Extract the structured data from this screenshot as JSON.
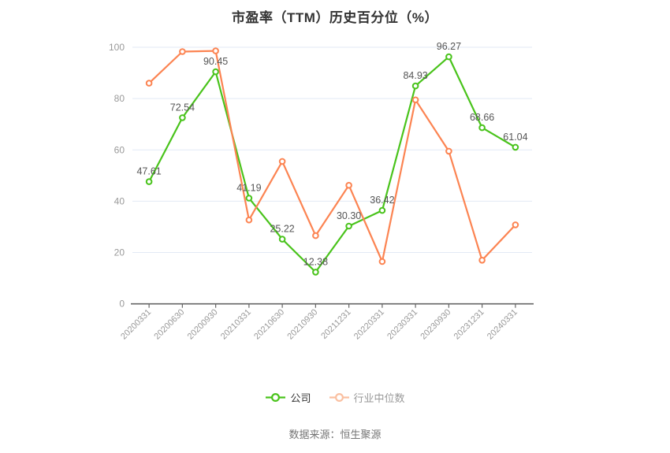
{
  "title": "市盈率（TTM）历史百分位（%）",
  "source_note": "数据来源：恒生聚源",
  "colors": {
    "company_line": "#49C31B",
    "industry_line": "#FC8452",
    "industry_legend_marker": "#FAC0A1",
    "grid_line": "#E2E9F5",
    "axis_line": "#666666",
    "axis_label": "#999999",
    "value_label": "#555555",
    "title_text": "#333333",
    "company_legend_text": "#333333",
    "industry_legend_text": "#999999"
  },
  "legend": [
    {
      "id": "company",
      "label": "公司",
      "line_color": "#49C31B",
      "marker_color": "#49C31B",
      "text_color": "#333333"
    },
    {
      "id": "industry-median",
      "label": "行业中位数",
      "line_color": "#FAC0A1",
      "marker_color": "#FAC0A1",
      "text_color": "#999999"
    }
  ],
  "chart_data": {
    "type": "line",
    "categories": [
      "20200331",
      "20200630",
      "20200930",
      "20210331",
      "20210630",
      "20210930",
      "20211231",
      "20220331",
      "20230331",
      "20230930",
      "20231231",
      "20240331"
    ],
    "series": [
      {
        "name": "公司",
        "color": "#49C31B",
        "values": [
          47.61,
          72.54,
          90.45,
          41.19,
          25.22,
          12.38,
          30.3,
          36.42,
          84.93,
          96.27,
          68.66,
          61.04
        ],
        "show_labels": true
      },
      {
        "name": "行业中位数",
        "color": "#FC8452",
        "values": [
          86.0,
          98.3,
          98.6,
          32.7,
          55.5,
          26.6,
          46.2,
          16.5,
          79.5,
          59.5,
          17.0,
          30.8
        ],
        "show_labels": false
      }
    ],
    "ylim": [
      0,
      100
    ],
    "yticks": [
      0,
      20,
      40,
      60,
      80,
      100
    ],
    "grid": true,
    "legend_position": "bottom",
    "marker": "open-circle"
  }
}
